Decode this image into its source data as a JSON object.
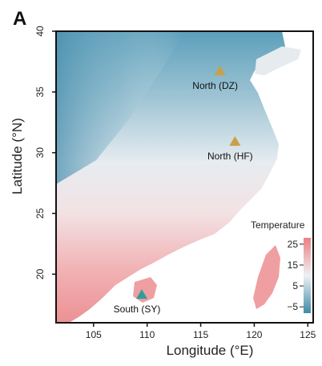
{
  "panel": {
    "label": "A"
  },
  "axes": {
    "xlabel": "Longitude (°E)",
    "ylabel": "Latitude (°N)",
    "xlim": [
      101.5,
      125.5
    ],
    "ylim": [
      16,
      40
    ],
    "xticks": [
      105,
      110,
      115,
      120,
      125
    ],
    "yticks": [
      20,
      25,
      30,
      35,
      40
    ]
  },
  "sites": [
    {
      "name": "North (DZ)",
      "lon": 116.8,
      "lat": 36.7,
      "color": "#c9a046"
    },
    {
      "name": "North (HF)",
      "lon": 118.2,
      "lat": 30.9,
      "color": "#c9a046"
    },
    {
      "name": "South (SY)",
      "lon": 109.5,
      "lat": 18.3,
      "color": "#2e9e9a"
    }
  ],
  "legend": {
    "title": "Temperature",
    "ticks": [
      25,
      15,
      5,
      -5
    ],
    "tick_labels": [
      "25",
      "15",
      "5",
      "−5"
    ],
    "range": [
      -8,
      28
    ],
    "colors": {
      "cold": "#4a95b3",
      "mid": "#eef1f4",
      "warm": "#ee8a8c"
    }
  }
}
